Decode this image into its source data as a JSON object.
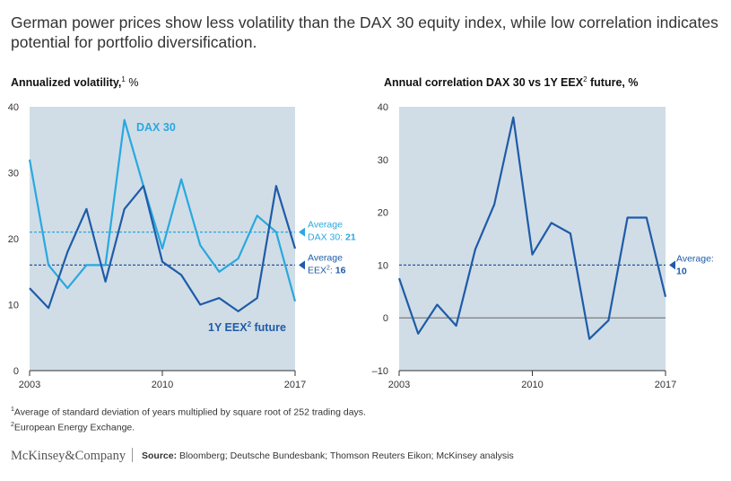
{
  "title": "German power prices show less volatility than the DAX 30 equity index, while low correlation indicates potential for portfolio diversification.",
  "chart_data": [
    {
      "type": "line",
      "title": "Annualized volatility,",
      "title_sup": "1",
      "title_unit": " %",
      "x": [
        2003,
        2004,
        2005,
        2006,
        2007,
        2008,
        2009,
        2010,
        2011,
        2012,
        2013,
        2014,
        2015,
        2016,
        2017
      ],
      "xticks": [
        "2003",
        "2010",
        "2017"
      ],
      "ylim": [
        0,
        40
      ],
      "yticks": [
        0,
        10,
        20,
        30,
        40
      ],
      "series": [
        {
          "name": "DAX 30",
          "color": "#29a8e0",
          "values": [
            32,
            16,
            12.5,
            16,
            16,
            38,
            28,
            18.5,
            29,
            19,
            15,
            17,
            23.5,
            21,
            10.5
          ]
        },
        {
          "name": "1Y EEX² future",
          "color": "#1f5ba8",
          "values": [
            12.5,
            9.5,
            18,
            24.5,
            13.5,
            24.5,
            28,
            16.5,
            14.5,
            10,
            11,
            9,
            11,
            28,
            18.5
          ]
        }
      ],
      "series_labels": {
        "dax": "DAX 30",
        "eex_main": "1Y EEX",
        "eex_sup": "2",
        "eex_tail": " future"
      },
      "averages": [
        {
          "series": "DAX 30",
          "value": 21,
          "color": "#29a8e0",
          "line1": "Average",
          "line2": "DAX 30: ",
          "line2_value": "21"
        },
        {
          "series": "1Y EEX² future",
          "value": 16,
          "color": "#1f5ba8",
          "line1": "Average",
          "line2": "EEX",
          "line2_sup": "2",
          "line2_tail": ": ",
          "line2_value": "16"
        }
      ],
      "grid": false
    },
    {
      "type": "line",
      "title": "Annual correlation DAX 30 vs 1Y EEX",
      "title_sup": "2",
      "title_unit": " future, %",
      "x": [
        2003,
        2004,
        2005,
        2006,
        2007,
        2008,
        2009,
        2010,
        2011,
        2012,
        2013,
        2014,
        2015,
        2016,
        2017
      ],
      "xticks": [
        "2003",
        "2010",
        "2017"
      ],
      "ylim": [
        -10,
        40
      ],
      "yticks": [
        -10,
        0,
        10,
        20,
        30,
        40
      ],
      "series": [
        {
          "name": "",
          "color": "#1f5ba8",
          "values": [
            7.5,
            -3,
            2.5,
            -1.5,
            13,
            21.5,
            38,
            12,
            18,
            16,
            -4,
            -0.5,
            19,
            19,
            4
          ]
        }
      ],
      "averages": [
        {
          "value": 10,
          "color": "#1f5ba8",
          "line1": "Average:",
          "line2": "",
          "line2_value": "10"
        }
      ],
      "grid": false
    }
  ],
  "footnotes": {
    "f1_sup": "1",
    "f1": "Average of standard deviation of years multiplied by square root of 252 trading days.",
    "f2_sup": "2",
    "f2": "European Energy Exchange."
  },
  "brand": "McKinsey&Company",
  "source_label": "Source:",
  "source_text": " Bloomberg; Deutsche Bundesbank; Thomson Reuters Eikon; McKinsey analysis",
  "colors": {
    "plot_bg": "#d0dde6",
    "dax": "#29a8e0",
    "eex": "#1f5ba8"
  }
}
